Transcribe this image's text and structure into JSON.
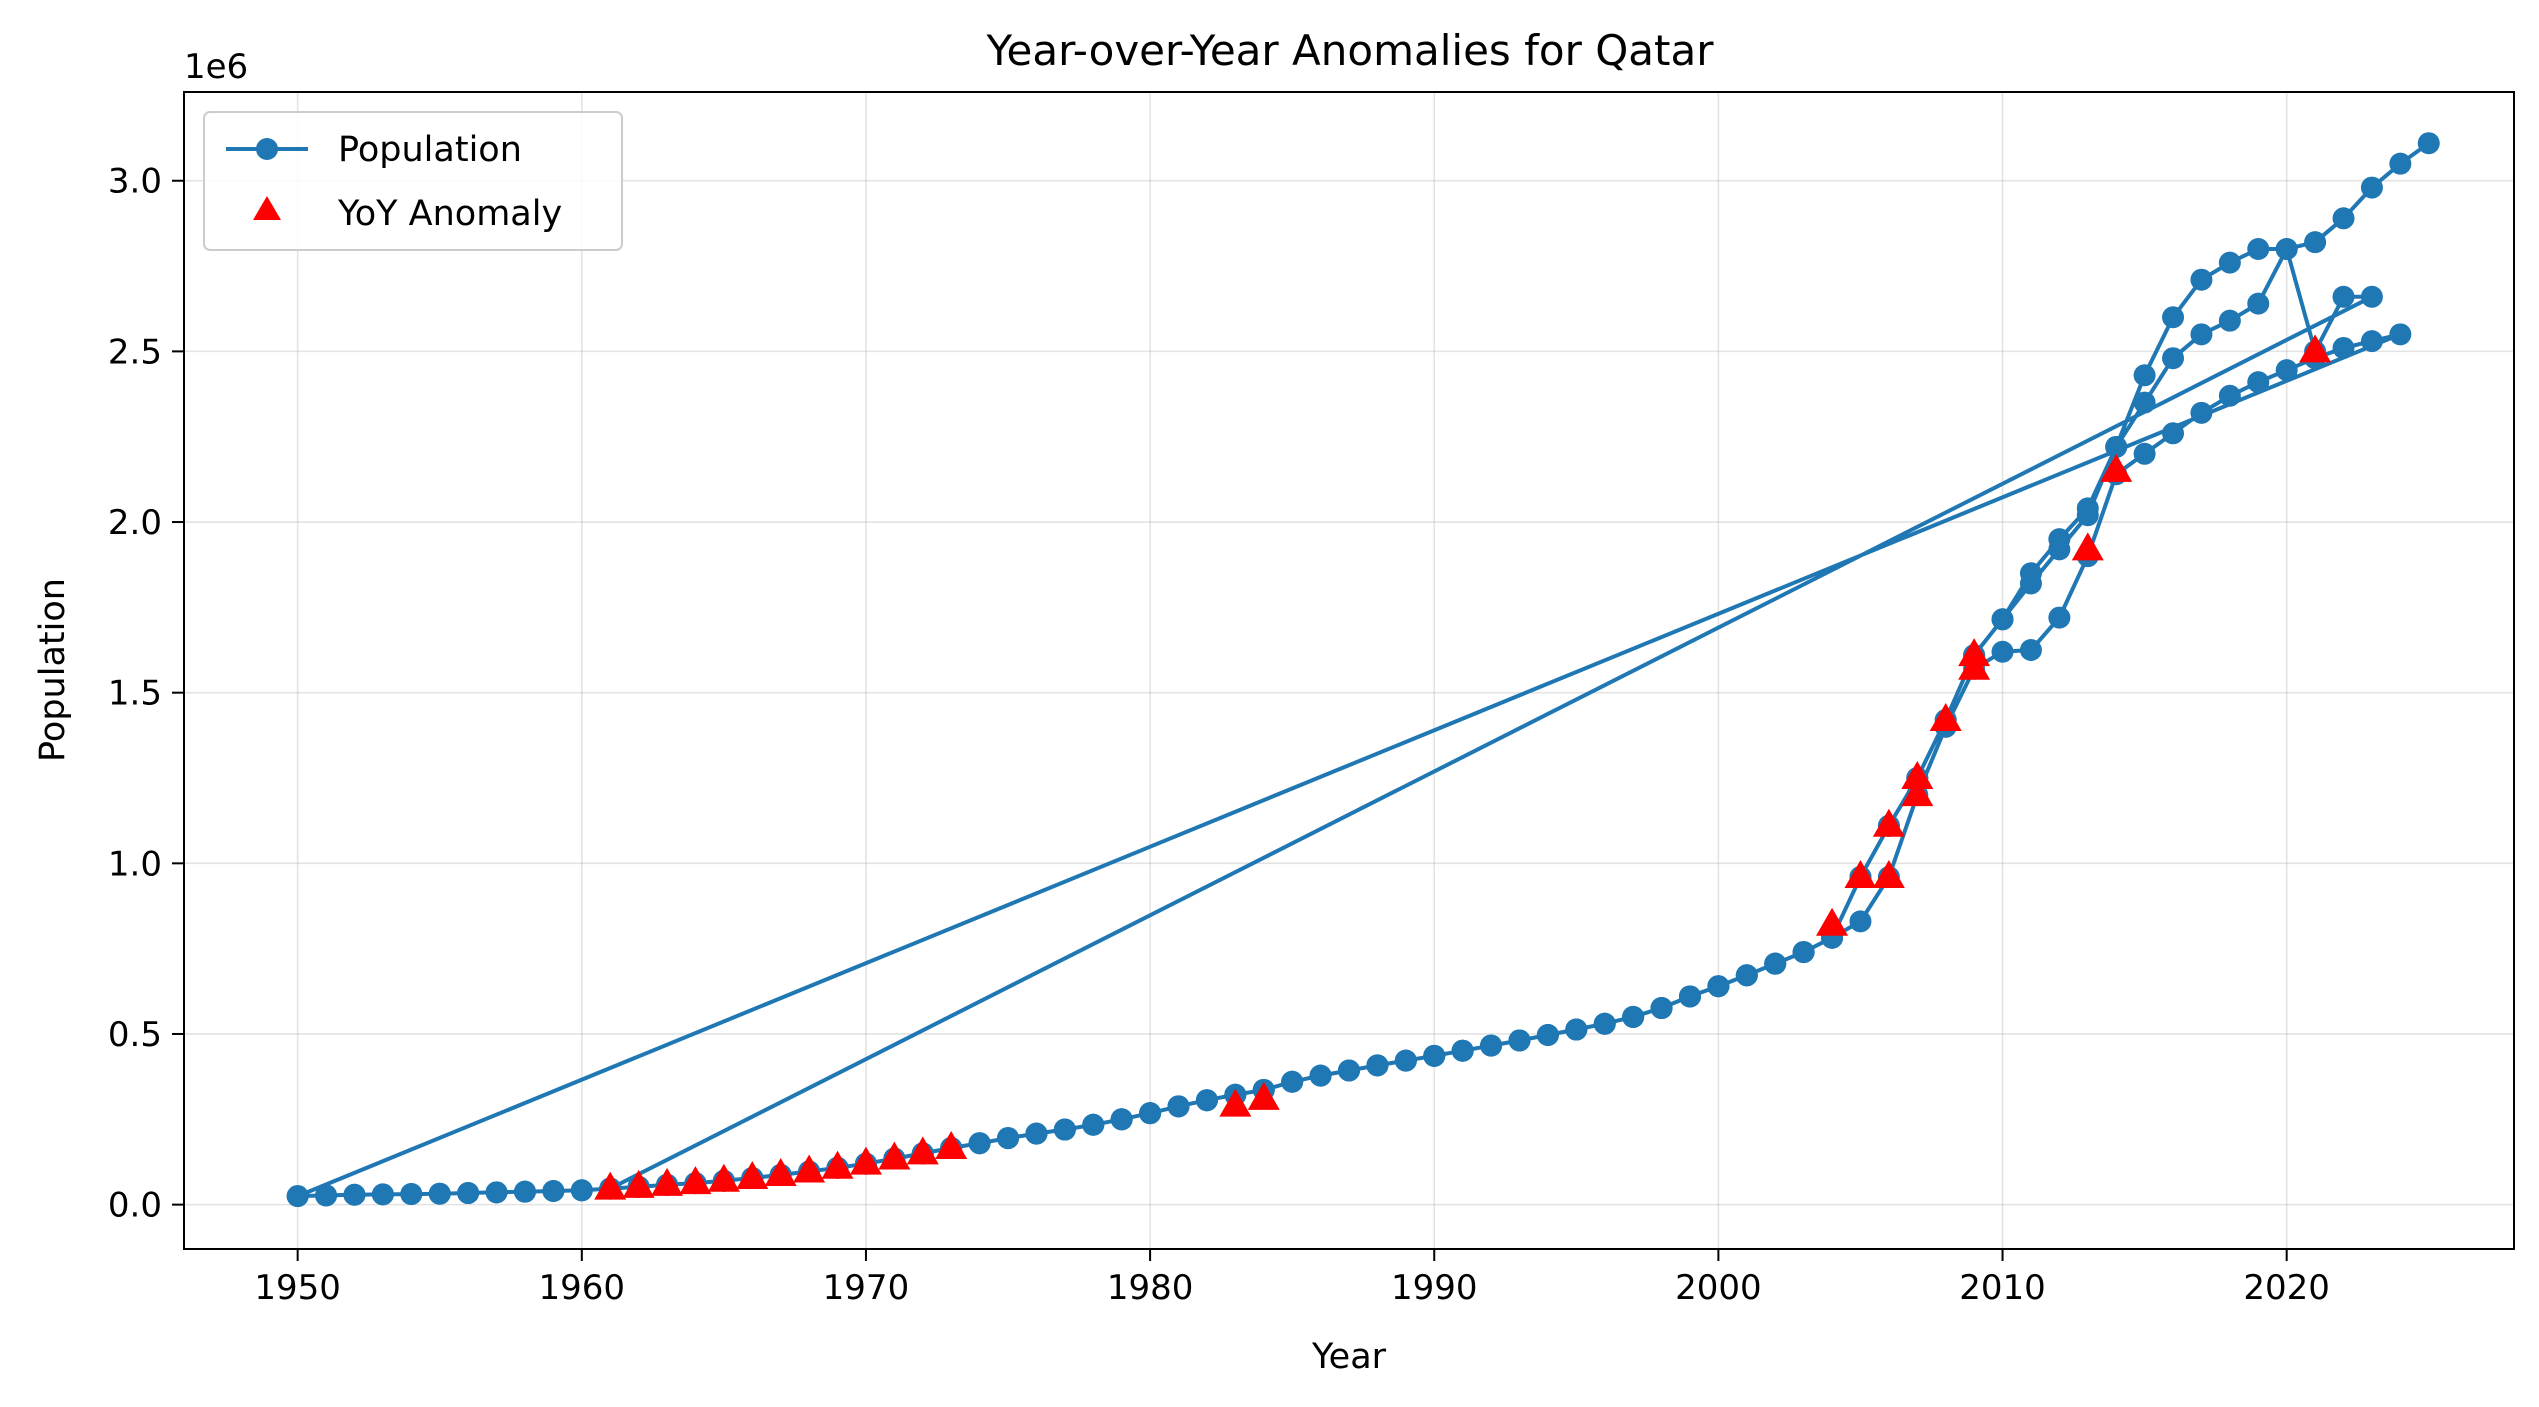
{
  "chart_data": {
    "type": "line",
    "title": "Year-over-Year Anomalies for Qatar",
    "xlabel": "Year",
    "ylabel": "Population",
    "y_offset_label": "1e6",
    "xlim": [
      1946,
      2028
    ],
    "ylim": [
      -130000,
      3260000
    ],
    "x_ticks": [
      1950,
      1960,
      1970,
      1980,
      1990,
      2000,
      2010,
      2020
    ],
    "y_ticks": [
      0,
      500000,
      1000000,
      1500000,
      2000000,
      2500000,
      3000000
    ],
    "y_tick_labels": [
      "0.0",
      "0.5",
      "1.0",
      "1.5",
      "2.0",
      "2.5",
      "3.0"
    ],
    "grid": true,
    "legend_position": "top-left",
    "colors": {
      "line": "#1f77b4",
      "anomaly": "#ff0000"
    },
    "series": [
      {
        "name": "Population",
        "style": "line-marker",
        "points": [
          [
            1950,
            25000
          ],
          [
            1951,
            27000
          ],
          [
            1952,
            29000
          ],
          [
            1953,
            30000
          ],
          [
            1954,
            31000
          ],
          [
            1955,
            32000
          ],
          [
            1956,
            34000
          ],
          [
            1957,
            36000
          ],
          [
            1958,
            38000
          ],
          [
            1959,
            40000
          ],
          [
            1960,
            42000
          ],
          [
            1961,
            47000
          ],
          [
            1962,
            52000
          ],
          [
            1963,
            58000
          ],
          [
            1964,
            63000
          ],
          [
            1965,
            70000
          ],
          [
            1966,
            78000
          ],
          [
            1967,
            87000
          ],
          [
            1968,
            97000
          ],
          [
            1969,
            108000
          ],
          [
            1970,
            120000
          ],
          [
            1971,
            135000
          ],
          [
            1972,
            150000
          ],
          [
            1973,
            166000
          ],
          [
            1974,
            180000
          ],
          [
            1975,
            195000
          ],
          [
            1976,
            208000
          ],
          [
            1977,
            220000
          ],
          [
            1978,
            234000
          ],
          [
            1979,
            250000
          ],
          [
            1980,
            268000
          ],
          [
            1981,
            288000
          ],
          [
            1982,
            306000
          ],
          [
            1983,
            322000
          ],
          [
            1984,
            336000
          ],
          [
            1985,
            360000
          ],
          [
            1986,
            378000
          ],
          [
            1987,
            393000
          ],
          [
            1988,
            408000
          ],
          [
            1989,
            422000
          ],
          [
            1990,
            436000
          ],
          [
            1991,
            451000
          ],
          [
            1992,
            466000
          ],
          [
            1993,
            481000
          ],
          [
            1994,
            497000
          ],
          [
            1995,
            513000
          ],
          [
            1996,
            530000
          ],
          [
            1997,
            550000
          ],
          [
            1998,
            576000
          ],
          [
            1999,
            610000
          ],
          [
            2000,
            640000
          ],
          [
            2001,
            672000
          ],
          [
            2002,
            706000
          ],
          [
            2003,
            740000
          ],
          [
            2004,
            782000
          ],
          [
            2005,
            830000
          ],
          [
            2006,
            960000
          ],
          [
            2007,
            1200000
          ],
          [
            2008,
            1400000
          ],
          [
            2009,
            1570000
          ],
          [
            2010,
            1620000
          ],
          [
            2011,
            1625000
          ],
          [
            2012,
            1720000
          ],
          [
            2013,
            1900000
          ],
          [
            2014,
            2140000
          ],
          [
            2015,
            2200000
          ],
          [
            2016,
            2260000
          ],
          [
            2017,
            2320000
          ],
          [
            2018,
            2370000
          ],
          [
            2019,
            2410000
          ],
          [
            2020,
            2445000
          ],
          [
            2021,
            2480000
          ],
          [
            2022,
            2510000
          ],
          [
            2023,
            2530000
          ],
          [
            2024,
            2550000
          ],
          [
            1950,
            25000
          ],
          [
            1951,
            27000
          ],
          [
            1952,
            29000
          ],
          [
            1953,
            30000
          ],
          [
            1954,
            31000
          ],
          [
            1955,
            32000
          ],
          [
            1956,
            34000
          ],
          [
            1957,
            36000
          ],
          [
            1958,
            38000
          ],
          [
            1959,
            40000
          ],
          [
            1960,
            42000
          ],
          [
            1961,
            47000
          ],
          [
            1962,
            52000
          ],
          [
            1963,
            58000
          ],
          [
            1964,
            63000
          ],
          [
            1965,
            70000
          ],
          [
            1966,
            78000
          ],
          [
            1967,
            87000
          ],
          [
            1968,
            97000
          ],
          [
            1969,
            108000
          ],
          [
            1970,
            120000
          ],
          [
            1971,
            135000
          ],
          [
            1972,
            150000
          ],
          [
            1973,
            166000
          ],
          [
            1974,
            180000
          ],
          [
            1975,
            195000
          ],
          [
            1976,
            208000
          ],
          [
            1977,
            220000
          ],
          [
            1978,
            234000
          ],
          [
            1979,
            250000
          ],
          [
            1980,
            268000
          ],
          [
            1981,
            288000
          ],
          [
            1982,
            306000
          ],
          [
            1983,
            322000
          ],
          [
            1984,
            336000
          ],
          [
            1985,
            360000
          ],
          [
            1986,
            378000
          ],
          [
            1987,
            393000
          ],
          [
            1988,
            408000
          ],
          [
            1989,
            422000
          ],
          [
            1990,
            436000
          ],
          [
            1991,
            451000
          ],
          [
            1992,
            466000
          ],
          [
            1993,
            481000
          ],
          [
            1994,
            497000
          ],
          [
            1995,
            513000
          ],
          [
            1996,
            530000
          ],
          [
            1997,
            550000
          ],
          [
            1998,
            576000
          ],
          [
            1999,
            610000
          ],
          [
            2000,
            640000
          ],
          [
            2001,
            672000
          ],
          [
            2002,
            706000
          ],
          [
            2003,
            740000
          ],
          [
            2004,
            782000
          ],
          [
            2005,
            960000
          ],
          [
            2006,
            1110000
          ],
          [
            2007,
            1250000
          ],
          [
            2008,
            1420000
          ],
          [
            2009,
            1610000
          ],
          [
            2010,
            1715000
          ],
          [
            2011,
            1820000
          ],
          [
            2012,
            1920000
          ],
          [
            2013,
            2020000
          ],
          [
            2014,
            2220000
          ],
          [
            2015,
            2350000
          ],
          [
            2016,
            2480000
          ],
          [
            2017,
            2550000
          ],
          [
            2018,
            2590000
          ],
          [
            2019,
            2640000
          ],
          [
            2020,
            2800000
          ],
          [
            2021,
            2500000
          ],
          [
            2022,
            2660000
          ],
          [
            2023,
            2660000
          ],
          [
            1961,
            47000
          ],
          [
            1962,
            52000
          ],
          [
            1963,
            58000
          ],
          [
            1964,
            63000
          ],
          [
            1965,
            70000
          ],
          [
            1966,
            78000
          ],
          [
            1967,
            87000
          ],
          [
            1968,
            97000
          ],
          [
            1969,
            108000
          ],
          [
            1970,
            120000
          ],
          [
            1971,
            135000
          ],
          [
            1972,
            150000
          ],
          [
            1973,
            166000
          ],
          [
            1974,
            180000
          ],
          [
            1975,
            195000
          ],
          [
            1976,
            208000
          ],
          [
            1977,
            220000
          ],
          [
            1978,
            234000
          ],
          [
            1979,
            250000
          ],
          [
            1980,
            268000
          ],
          [
            1981,
            288000
          ],
          [
            1982,
            306000
          ],
          [
            1983,
            322000
          ],
          [
            1984,
            336000
          ],
          [
            1985,
            360000
          ],
          [
            1986,
            378000
          ],
          [
            1987,
            393000
          ],
          [
            1988,
            408000
          ],
          [
            1989,
            422000
          ],
          [
            1990,
            436000
          ],
          [
            1991,
            451000
          ],
          [
            1992,
            466000
          ],
          [
            1993,
            481000
          ],
          [
            1994,
            497000
          ],
          [
            1995,
            513000
          ],
          [
            1996,
            530000
          ],
          [
            1997,
            550000
          ],
          [
            1998,
            576000
          ],
          [
            1999,
            610000
          ],
          [
            2000,
            640000
          ],
          [
            2001,
            672000
          ],
          [
            2002,
            706000
          ],
          [
            2003,
            740000
          ],
          [
            2004,
            782000
          ],
          [
            2005,
            960000
          ],
          [
            2006,
            1110000
          ],
          [
            2007,
            1250000
          ],
          [
            2008,
            1420000
          ],
          [
            2009,
            1610000
          ],
          [
            2010,
            1715000
          ],
          [
            2011,
            1850000
          ],
          [
            2012,
            1950000
          ],
          [
            2013,
            2040000
          ],
          [
            2014,
            2220000
          ],
          [
            2015,
            2430000
          ],
          [
            2016,
            2600000
          ],
          [
            2017,
            2710000
          ],
          [
            2018,
            2760000
          ],
          [
            2019,
            2800000
          ],
          [
            2020,
            2800000
          ],
          [
            2021,
            2820000
          ],
          [
            2022,
            2890000
          ],
          [
            2023,
            2980000
          ],
          [
            2024,
            3050000
          ],
          [
            2025,
            3110000
          ]
        ]
      },
      {
        "name": "YoY Anomaly",
        "style": "triangle-marker",
        "points": [
          [
            1961,
            47000
          ],
          [
            1962,
            52000
          ],
          [
            1963,
            58000
          ],
          [
            1964,
            63000
          ],
          [
            1965,
            70000
          ],
          [
            1966,
            78000
          ],
          [
            1967,
            87000
          ],
          [
            1968,
            97000
          ],
          [
            1969,
            108000
          ],
          [
            1970,
            120000
          ],
          [
            1971,
            135000
          ],
          [
            1972,
            150000
          ],
          [
            1973,
            166000
          ],
          [
            1983,
            290000
          ],
          [
            1984,
            310000
          ],
          [
            2004,
            820000
          ],
          [
            2005,
            960000
          ],
          [
            2006,
            960000
          ],
          [
            2006,
            1110000
          ],
          [
            2007,
            1200000
          ],
          [
            2007,
            1250000
          ],
          [
            2008,
            1420000
          ],
          [
            2009,
            1570000
          ],
          [
            2009,
            1610000
          ],
          [
            2013,
            1920000
          ],
          [
            2014,
            2150000
          ],
          [
            2021,
            2500000
          ]
        ]
      }
    ]
  }
}
